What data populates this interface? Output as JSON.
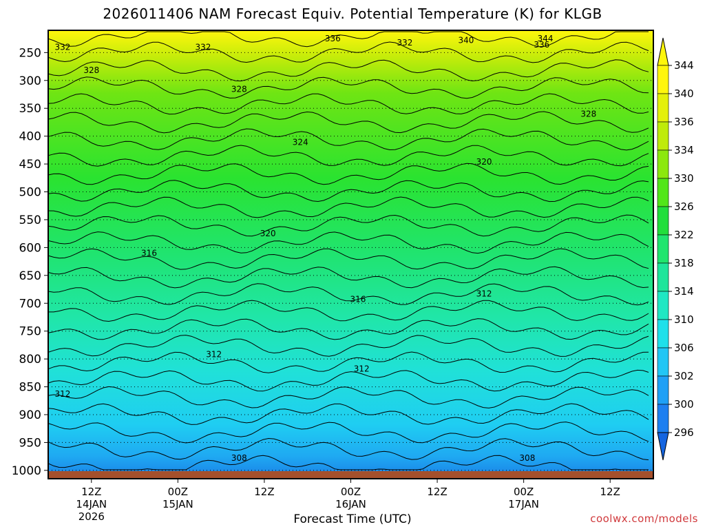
{
  "chart_data": {
    "type": "heatmap",
    "title": "2026011406 NAM Forecast Equiv. Potential Temperature (K) for KLGB",
    "xlabel": "Forecast Time (UTC)",
    "ylabel": "",
    "y_axis": {
      "scale": "pressure",
      "direction": "reversed",
      "ticks": [
        250,
        300,
        350,
        400,
        450,
        500,
        550,
        600,
        650,
        700,
        750,
        800,
        850,
        900,
        950,
        1000
      ],
      "range": [
        210,
        1015
      ]
    },
    "x_axis": {
      "range_hours": [
        0,
        84
      ],
      "ticks": [
        {
          "hour": 6,
          "label": "12Z",
          "sub": "14JAN",
          "sub2": "2026"
        },
        {
          "hour": 18,
          "label": "00Z",
          "sub": "15JAN"
        },
        {
          "hour": 30,
          "label": "12Z"
        },
        {
          "hour": 42,
          "label": "00Z",
          "sub": "16JAN"
        },
        {
          "hour": 54,
          "label": "12Z"
        },
        {
          "hour": 66,
          "label": "00Z",
          "sub": "17JAN"
        },
        {
          "hour": 78,
          "label": "12Z"
        }
      ]
    },
    "grid": "dotted horizontal at pressure ticks",
    "colorbar": {
      "levels": [
        296,
        300,
        302,
        306,
        310,
        314,
        318,
        322,
        326,
        330,
        334,
        336,
        340,
        344
      ],
      "colors": [
        "#1565e0",
        "#1e7ff0",
        "#1fa0f6",
        "#22c6f5",
        "#1fe0ea",
        "#20e7c3",
        "#1fe59b",
        "#20e56e",
        "#22de3c",
        "#52e619",
        "#8ce80e",
        "#bfeb0a",
        "#e4f00a",
        "#fff60c"
      ],
      "extend": "both"
    },
    "contour_labels": [
      {
        "text": "336",
        "hour": 39.5,
        "p": 225
      },
      {
        "text": "340",
        "hour": 58,
        "p": 228
      },
      {
        "text": "344",
        "hour": 69,
        "p": 225
      },
      {
        "text": "332",
        "hour": 2,
        "p": 240
      },
      {
        "text": "332",
        "hour": 21.5,
        "p": 240
      },
      {
        "text": "332",
        "hour": 49.5,
        "p": 232
      },
      {
        "text": "336",
        "hour": 68.5,
        "p": 236
      },
      {
        "text": "328",
        "hour": 6,
        "p": 282
      },
      {
        "text": "328",
        "hour": 26.5,
        "p": 316
      },
      {
        "text": "328",
        "hour": 75,
        "p": 360
      },
      {
        "text": "324",
        "hour": 35,
        "p": 411
      },
      {
        "text": "320",
        "hour": 60.5,
        "p": 446
      },
      {
        "text": "320",
        "hour": 30.5,
        "p": 575
      },
      {
        "text": "316",
        "hour": 14,
        "p": 610
      },
      {
        "text": "316",
        "hour": 43,
        "p": 693
      },
      {
        "text": "312",
        "hour": 60.5,
        "p": 683
      },
      {
        "text": "312",
        "hour": 23,
        "p": 792
      },
      {
        "text": "312",
        "hour": 43.5,
        "p": 818
      },
      {
        "text": "312",
        "hour": 2,
        "p": 863
      },
      {
        "text": "308",
        "hour": 26.5,
        "p": 978
      },
      {
        "text": "308",
        "hour": 66.5,
        "p": 978
      }
    ]
  },
  "credit": "coolwx.com/models"
}
